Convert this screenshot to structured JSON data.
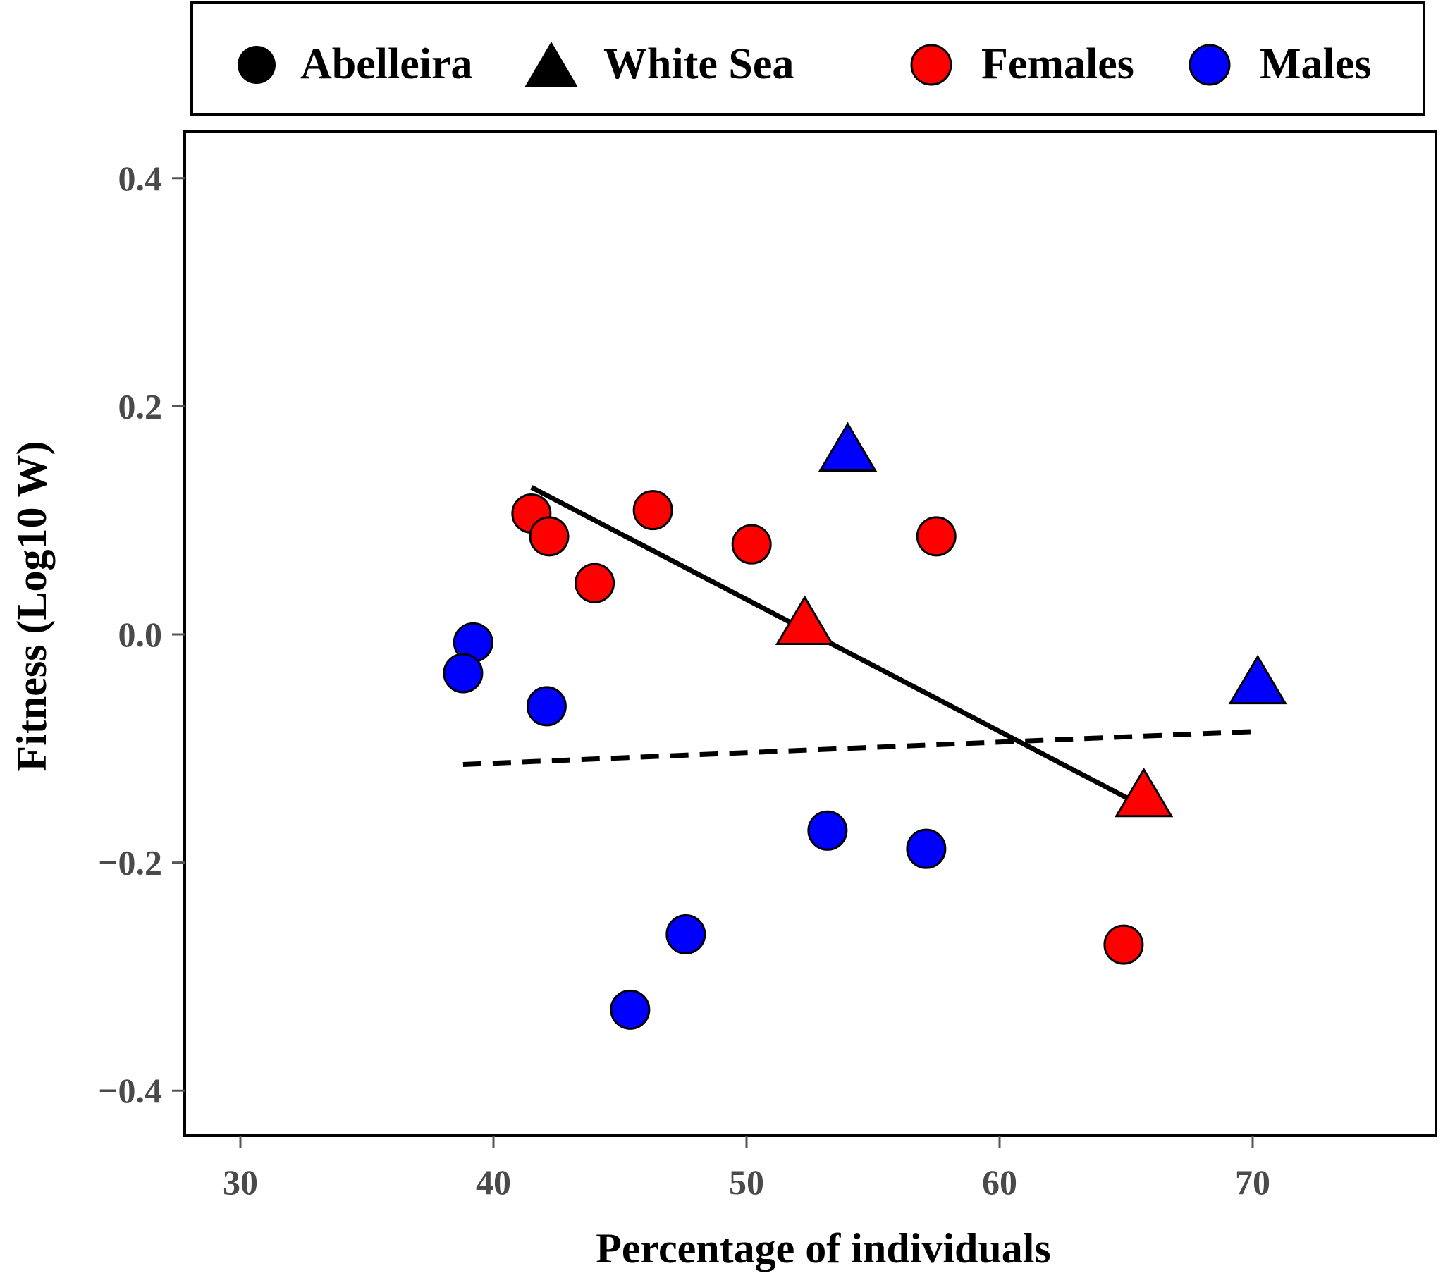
{
  "chart_data": {
    "type": "scatter",
    "title": "",
    "xlabel": "Percentage of individuals",
    "ylabel": "Fitness (Log10 W)",
    "xlim": [
      28,
      76
    ],
    "ylim": [
      -0.44,
      0.44
    ],
    "xticks": [
      30,
      40,
      50,
      60,
      70
    ],
    "yticks": [
      -0.4,
      -0.2,
      0.0,
      0.2,
      0.4
    ],
    "xtick_labels": [
      "30",
      "40",
      "50",
      "60",
      "70"
    ],
    "ytick_labels": [
      "−0.4",
      "−0.2",
      "0.0",
      "0.2",
      "0.4"
    ],
    "grid": false,
    "legend": {
      "placement": "top",
      "entries": [
        {
          "label": "Abelleira",
          "marker": "circle",
          "color": "#000000"
        },
        {
          "label": "White Sea",
          "marker": "triangle",
          "color": "#000000"
        },
        {
          "label": "Females",
          "marker": "circle",
          "color": "#ff0000"
        },
        {
          "label": "Males",
          "marker": "circle",
          "color": "#0000ff"
        }
      ]
    },
    "series": [
      {
        "name": "Abelleira Females",
        "population": "Abelleira",
        "sex": "Females",
        "marker": "circle",
        "color": "#ff0000",
        "x": [
          41.5,
          42.2,
          44.0,
          46.3,
          50.2,
          57.5,
          64.9
        ],
        "y": [
          0.106,
          0.086,
          0.045,
          0.109,
          0.079,
          0.086,
          -0.272
        ]
      },
      {
        "name": "Abelleira Males",
        "population": "Abelleira",
        "sex": "Males",
        "marker": "circle",
        "color": "#0000ff",
        "x": [
          39.2,
          38.8,
          42.1,
          45.4,
          47.6,
          53.2,
          57.1
        ],
        "y": [
          -0.007,
          -0.034,
          -0.063,
          -0.329,
          -0.263,
          -0.172,
          -0.188
        ]
      },
      {
        "name": "White Sea Females",
        "population": "White Sea",
        "sex": "Females",
        "marker": "triangle",
        "color": "#ff0000",
        "x": [
          52.3,
          65.7
        ],
        "y": [
          0.008,
          -0.143
        ]
      },
      {
        "name": "White Sea Males",
        "population": "White Sea",
        "sex": "Males",
        "marker": "triangle",
        "color": "#0000ff",
        "x": [
          54.0,
          70.2
        ],
        "y": [
          0.16,
          -0.044
        ]
      }
    ],
    "trend_lines": [
      {
        "name": "Females fit",
        "style": "solid",
        "x": [
          41.5,
          65.7
        ],
        "y": [
          0.129,
          -0.151
        ]
      },
      {
        "name": "Males fit",
        "style": "dashed",
        "x": [
          38.8,
          70.2
        ],
        "y": [
          -0.114,
          -0.085
        ]
      }
    ]
  },
  "colors": {
    "axis_text": "#4a4a4a",
    "frame": "#000000",
    "female": "#ff0000",
    "male": "#0000ff",
    "marker_outline": "#000000"
  }
}
